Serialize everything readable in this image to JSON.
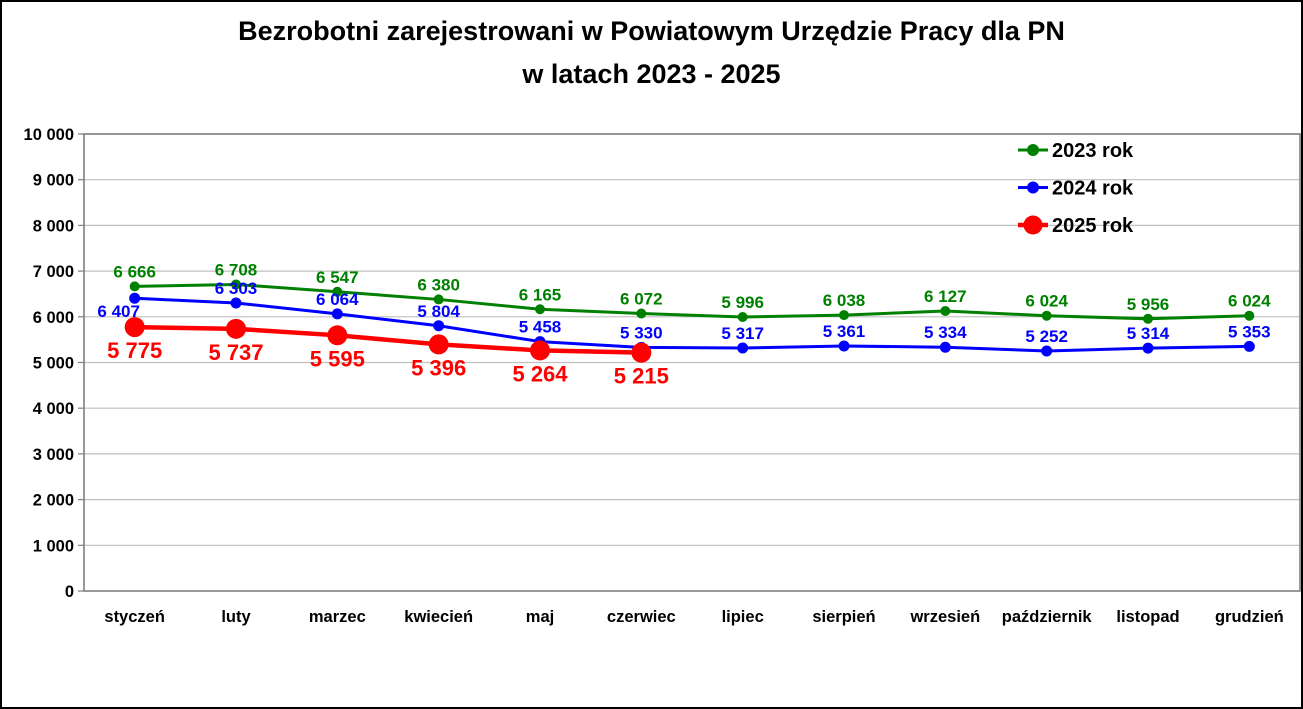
{
  "window": {
    "background_color": "#FFFFFF",
    "border_color": "#000000"
  },
  "chart_data": {
    "type": "line",
    "title": "Bezrobotni zarejestrowani w Powiatowym Urzędzie Pracy dla PN w latach 2023 - 2025",
    "title_lines": [
      "Bezrobotni zarejestrowani w Powiatowym Urzędzie Pracy dla PN",
      "w latach 2023 - 2025"
    ],
    "categories": [
      "styczeń",
      "luty",
      "marzec",
      "kwiecień",
      "maj",
      "czerwiec",
      "lipiec",
      "sierpień",
      "wrzesień",
      "październik",
      "listopad",
      "grudzień"
    ],
    "series": [
      {
        "name": "2023 rok",
        "color": "#008000",
        "values": [
          6666,
          6708,
          6547,
          6380,
          6165,
          6072,
          5996,
          6038,
          6127,
          6024,
          5956,
          6024
        ],
        "line_width": 3,
        "marker_radius": 5,
        "label_font_size": 17,
        "label_position": "above"
      },
      {
        "name": "2024 rok",
        "color": "#0000FF",
        "values": [
          6407,
          6303,
          6064,
          5804,
          5458,
          5330,
          5317,
          5361,
          5334,
          5252,
          5314,
          5353
        ],
        "line_width": 3,
        "marker_radius": 5.5,
        "label_font_size": 17,
        "label_position": "above",
        "label_overrides": {
          "0": {
            "dx": -16,
            "dy": 19,
            "position": "below"
          }
        }
      },
      {
        "name": "2025 rok",
        "color": "#FF0000",
        "values": [
          5775,
          5737,
          5595,
          5396,
          5264,
          5215
        ],
        "line_width": 4.5,
        "marker_radius": 10,
        "label_font_size": 22,
        "label_position": "below"
      }
    ],
    "xlabel": "",
    "ylabel": "",
    "ylim": [
      0,
      10000
    ],
    "y_step": 1000,
    "y_tick_labels": [
      "0",
      "1 000",
      "2 000",
      "3 000",
      "4 000",
      "5 000",
      "6 000",
      "7 000",
      "8 000",
      "9 000",
      "10 000"
    ],
    "grid": true,
    "gridline_color": "#BFBFBF",
    "axis_border_color": "#7F7F7F",
    "tick_label_color": "#000000",
    "legend_position": "top-right",
    "legend": [
      "2023 rok",
      "2024 rok",
      "2025 rok"
    ]
  }
}
